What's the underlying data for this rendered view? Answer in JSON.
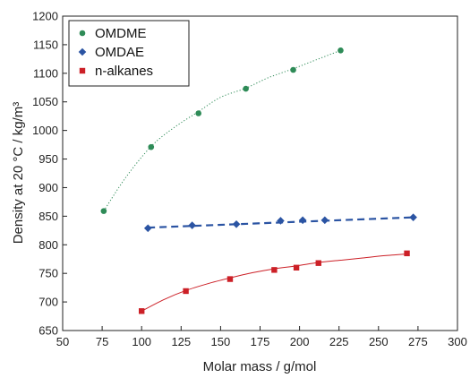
{
  "chart_data": {
    "type": "scatter",
    "xlabel": "Molar mass  / g/mol",
    "ylabel": "Density at 20 °C  / kg/m³",
    "xlim": [
      50,
      300
    ],
    "ylim": [
      650,
      1200
    ],
    "x_ticks": [
      50,
      75,
      100,
      125,
      150,
      175,
      200,
      225,
      250,
      275,
      300
    ],
    "y_ticks": [
      650,
      700,
      750,
      800,
      850,
      900,
      950,
      1000,
      1050,
      1100,
      1150,
      1200
    ],
    "grid": false,
    "legend_position": "top-left",
    "series": [
      {
        "name": "OMDME",
        "color": "#2e8b57",
        "marker": "circle",
        "fit_style": "dotted",
        "x": [
          76,
          106,
          136,
          166,
          196,
          226
        ],
        "y": [
          859,
          971,
          1030,
          1073,
          1106,
          1140
        ],
        "fit": [
          [
            76,
            859
          ],
          [
            90,
            918
          ],
          [
            106,
            972
          ],
          [
            120,
            1004
          ],
          [
            136,
            1033
          ],
          [
            150,
            1058
          ],
          [
            166,
            1074
          ],
          [
            180,
            1092
          ],
          [
            196,
            1108
          ],
          [
            210,
            1123
          ],
          [
            226,
            1140
          ]
        ]
      },
      {
        "name": "OMDAE",
        "color": "#2b54a3",
        "marker": "diamond",
        "fit_style": "dashed",
        "x": [
          104,
          132,
          160,
          188,
          202,
          216,
          272
        ],
        "y": [
          829,
          834,
          836,
          842,
          843,
          843,
          848
        ],
        "fit": [
          [
            104,
            830
          ],
          [
            272,
            848
          ]
        ]
      },
      {
        "name": "n-alkanes",
        "color": "#cc2027",
        "marker": "square",
        "fit_style": "solid",
        "x": [
          100,
          128,
          156,
          184,
          198,
          212,
          268
        ],
        "y": [
          684,
          719,
          740,
          756,
          760,
          768,
          785
        ],
        "fit": [
          [
            100,
            684
          ],
          [
            114,
            704
          ],
          [
            128,
            720
          ],
          [
            142,
            732
          ],
          [
            156,
            742
          ],
          [
            170,
            751
          ],
          [
            184,
            758
          ],
          [
            198,
            763
          ],
          [
            212,
            769
          ],
          [
            226,
            773
          ],
          [
            240,
            777
          ],
          [
            254,
            781
          ],
          [
            268,
            784
          ]
        ]
      }
    ]
  }
}
